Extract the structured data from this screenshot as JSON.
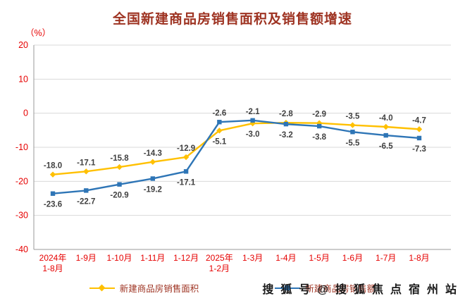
{
  "page": {
    "background": "#ffffff"
  },
  "colors": {
    "title": "#9e3322",
    "axis_labels": "#e60000",
    "data_labels": "#404040",
    "grid": "#d9d9d9",
    "axis_line": "#9a9a9a",
    "legend_text": "#9e3322",
    "watermark": "#1a1a1a"
  },
  "chart_data": {
    "type": "line",
    "title": "全国新建商品房销售面积及销售额增速",
    "unit": "（%）",
    "categories": [
      "2024年\n1-8月",
      "1-9月",
      "1-10月",
      "1-11月",
      "1-12月",
      "2025年\n1-2月",
      "1-3月",
      "1-4月",
      "1-5月",
      "1-6月",
      "1-7月",
      "1-8月"
    ],
    "series": [
      {
        "name": "新建商品房销售面积",
        "color": "#FFC000",
        "marker": "diamond",
        "values": [
          -18.0,
          -17.1,
          -15.8,
          -14.3,
          -12.9,
          -5.1,
          -3.0,
          -2.8,
          -2.9,
          -3.5,
          -4.0,
          -4.7
        ]
      },
      {
        "name": "新建商品房销售额",
        "color": "#2E75B6",
        "marker": "square",
        "values": [
          -23.6,
          -22.7,
          -20.9,
          -19.2,
          -17.1,
          -2.6,
          -2.1,
          -3.2,
          -3.8,
          -5.5,
          -6.5,
          -7.3
        ]
      }
    ],
    "ylim": [
      -40,
      20
    ],
    "yticks": [
      20,
      10,
      0,
      -10,
      -20,
      -30,
      -40
    ],
    "grid": true,
    "legend_position": "bottom"
  },
  "watermark": "搜狐号@搜狐焦点宿州站"
}
